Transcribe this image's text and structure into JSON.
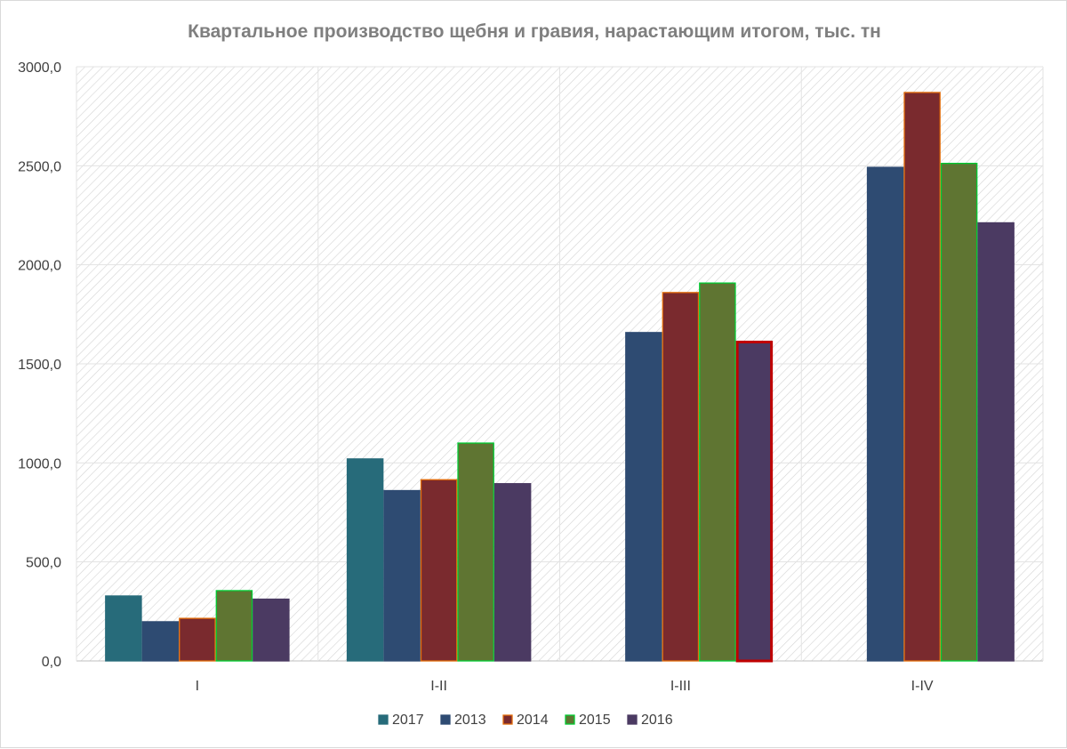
{
  "chart_data": {
    "type": "bar",
    "title": "Квартальное производство щебня и гравия, нарастающим итогом, тыс. тн",
    "xlabel": "",
    "ylabel": "",
    "categories": [
      "I",
      "I-II",
      "I-III",
      "I-IV"
    ],
    "ylim": [
      0,
      3000
    ],
    "yticks": [
      0,
      500,
      1000,
      1500,
      2000,
      2500,
      3000
    ],
    "ytick_labels": [
      "0,0",
      "500,0",
      "1000,0",
      "1500,0",
      "2000,0",
      "2500,0",
      "3000,0"
    ],
    "grid": true,
    "legend_position": "bottom",
    "series": [
      {
        "name": "2017",
        "values": [
          328,
          1020,
          null,
          null
        ],
        "color": "#276b7a",
        "edge": "#276b7a"
      },
      {
        "name": "2013",
        "values": [
          198,
          860,
          1658,
          2492
        ],
        "color": "#2e4b72",
        "edge": "#2e4b72"
      },
      {
        "name": "2014",
        "values": [
          215,
          915,
          1860,
          2870
        ],
        "color": "#7a2a2e",
        "edge": "#e36c09"
      },
      {
        "name": "2015",
        "values": [
          355,
          1100,
          1908,
          2512
        ],
        "color": "#5f7532",
        "edge": "#00cc33"
      },
      {
        "name": "2016",
        "values": [
          312,
          895,
          1610,
          2212
        ],
        "color": "#4b3a62",
        "edge": "#4b3a62"
      }
    ],
    "highlight": {
      "series": "2016",
      "category": "I-III",
      "edge": "#c00000"
    }
  }
}
